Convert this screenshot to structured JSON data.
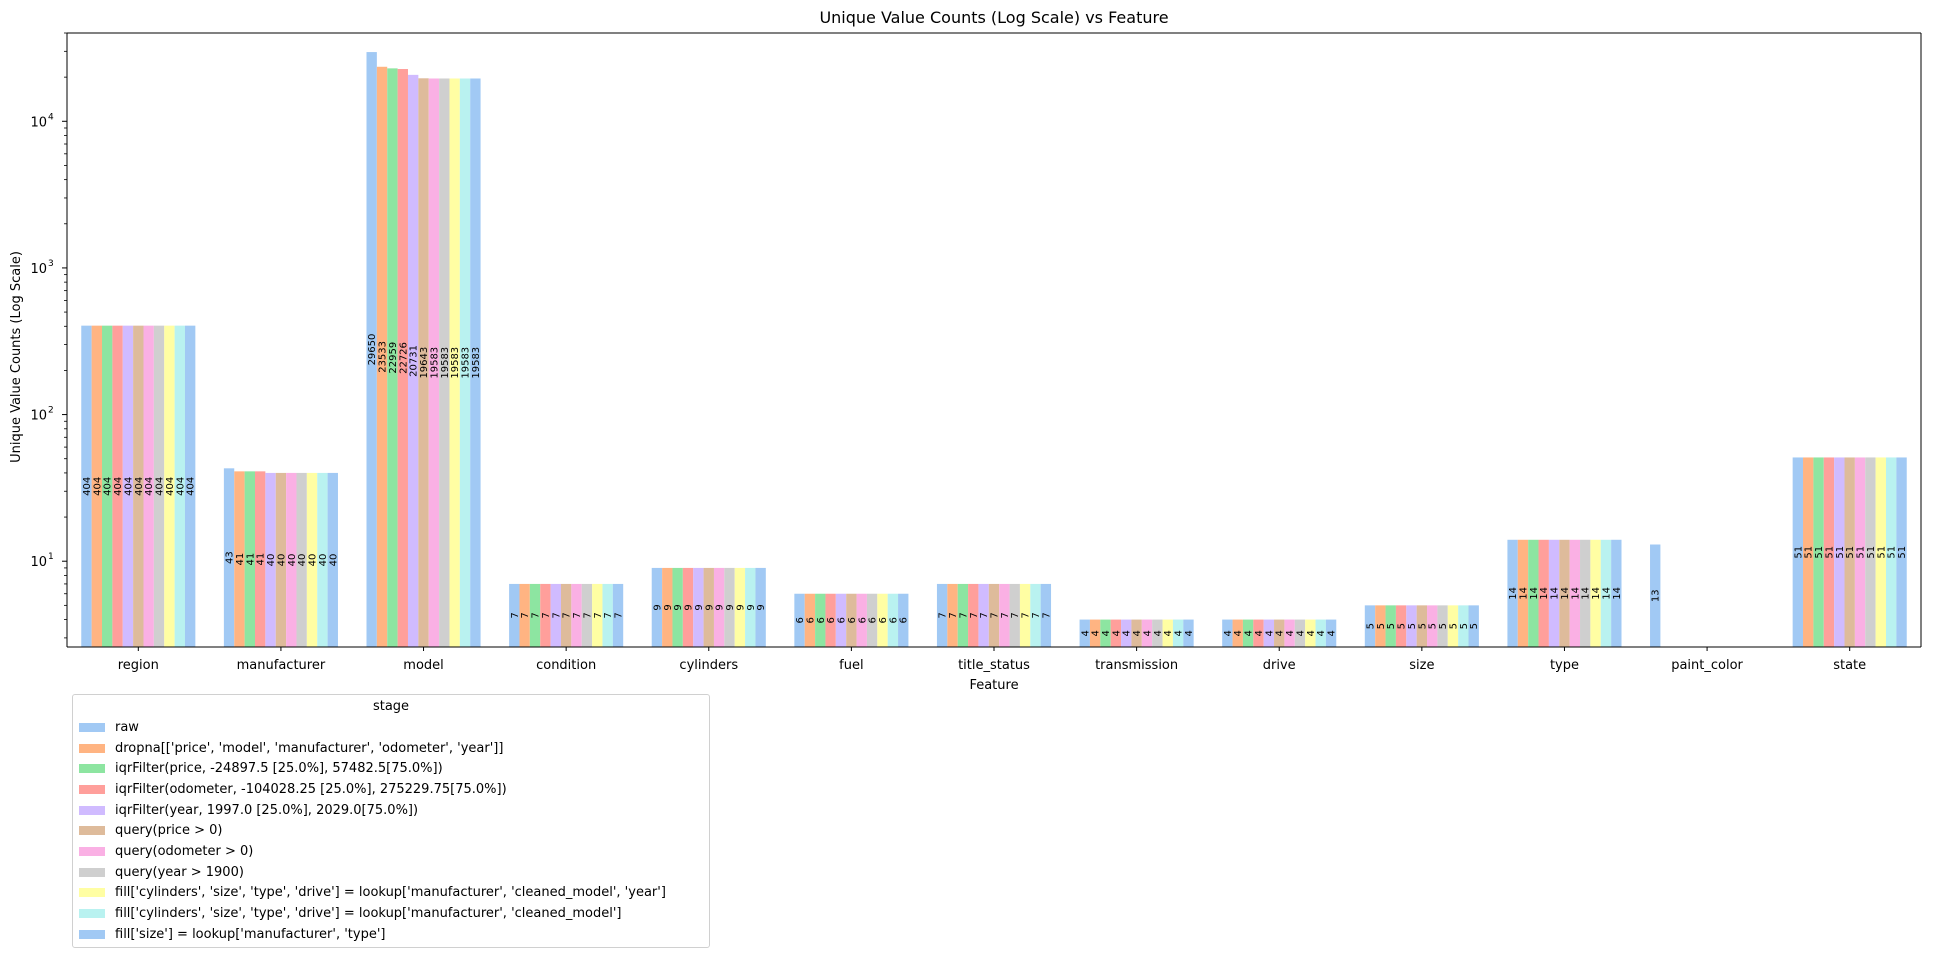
{
  "chart_data": {
    "type": "bar",
    "title": "Unique Value Counts (Log Scale) vs Feature",
    "xlabel": "Feature",
    "ylabel": "Unique Value Counts (Log Scale)",
    "yscale": "log",
    "ylim": [
      2.6,
      40000
    ],
    "yticks": [
      {
        "value": 10,
        "label": "10"
      },
      {
        "value": 100,
        "label": "10"
      },
      {
        "value": 1000,
        "label": "10"
      },
      {
        "value": 10000,
        "label": "10"
      }
    ],
    "ytick_exponents": [
      "1",
      "2",
      "3",
      "4"
    ],
    "categories": [
      "region",
      "manufacturer",
      "model",
      "condition",
      "cylinders",
      "fuel",
      "title_status",
      "transmission",
      "drive",
      "size",
      "type",
      "paint_color",
      "state"
    ],
    "legend_title": "stage",
    "legend_position": "lower-left, below axes",
    "grid": false,
    "series": [
      {
        "name": "raw",
        "color": "#a1c9f4",
        "values": [
          404,
          43,
          29650,
          7,
          9,
          6,
          7,
          4,
          4,
          5,
          14,
          13,
          51
        ]
      },
      {
        "name": "dropna[['price', 'model', 'manufacturer', 'odometer', 'year']]",
        "color": "#ffb482",
        "values": [
          404,
          41,
          23533,
          7,
          9,
          6,
          7,
          4,
          4,
          5,
          14,
          null,
          51
        ]
      },
      {
        "name": "iqrFilter(price, -24897.5 [25.0%], 57482.5[75.0%])",
        "color": "#8de5a1",
        "values": [
          404,
          41,
          22959,
          7,
          9,
          6,
          7,
          4,
          4,
          5,
          14,
          null,
          51
        ]
      },
      {
        "name": "iqrFilter(odometer, -104028.25 [25.0%], 275229.75[75.0%])",
        "color": "#ff9f9b",
        "values": [
          404,
          41,
          22726,
          7,
          9,
          6,
          7,
          4,
          4,
          5,
          14,
          null,
          51
        ]
      },
      {
        "name": "iqrFilter(year, 1997.0 [25.0%], 2029.0[75.0%])",
        "color": "#d0bbff",
        "values": [
          404,
          40,
          20731,
          7,
          9,
          6,
          7,
          4,
          4,
          5,
          14,
          null,
          51
        ]
      },
      {
        "name": "query(price > 0)",
        "color": "#debb9b",
        "values": [
          404,
          40,
          19643,
          7,
          9,
          6,
          7,
          4,
          4,
          5,
          14,
          null,
          51
        ]
      },
      {
        "name": "query(odometer > 0)",
        "color": "#fab0e4",
        "values": [
          404,
          40,
          19583,
          7,
          9,
          6,
          7,
          4,
          4,
          5,
          14,
          null,
          51
        ]
      },
      {
        "name": "query(year > 1900)",
        "color": "#cfcfcf",
        "values": [
          404,
          40,
          19583,
          7,
          9,
          6,
          7,
          4,
          4,
          5,
          14,
          null,
          51
        ]
      },
      {
        "name": "fill['cylinders', 'size', 'type', 'drive'] = lookup['manufacturer', 'cleaned_model', 'year']",
        "color": "#fffea3",
        "values": [
          404,
          40,
          19583,
          7,
          9,
          6,
          7,
          4,
          4,
          5,
          14,
          null,
          51
        ]
      },
      {
        "name": "fill['cylinders', 'size', 'type', 'drive'] = lookup['manufacturer', 'cleaned_model']",
        "color": "#b9f2f0",
        "values": [
          404,
          40,
          19583,
          7,
          9,
          6,
          7,
          4,
          4,
          5,
          14,
          null,
          51
        ]
      },
      {
        "name": "fill['size'] = lookup['manufacturer', 'type']",
        "color": "#a1c9f4",
        "values": [
          404,
          40,
          19583,
          7,
          9,
          6,
          7,
          4,
          4,
          5,
          14,
          null,
          51
        ]
      }
    ]
  }
}
